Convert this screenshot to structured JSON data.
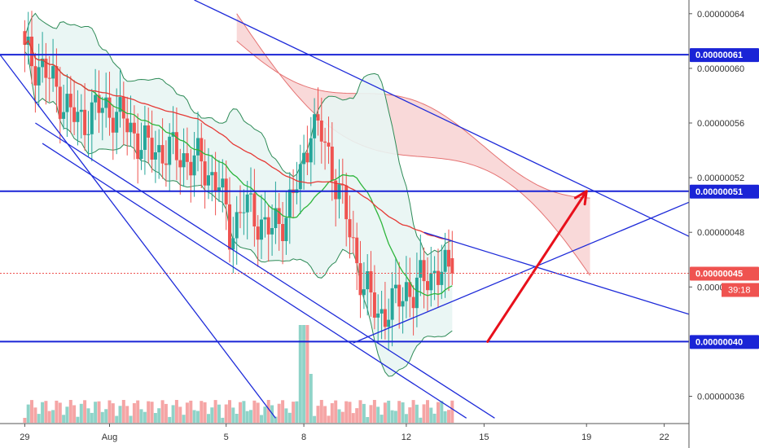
{
  "chart_data": {
    "type": "candlestick",
    "colors": {
      "up": "#26a69a",
      "down": "#ef5350",
      "up_volume": "#8fd3c8",
      "down_volume": "#f5a5a5",
      "fast_ma": "#2db53b",
      "slow_ma": "#e53935",
      "bollinger": "#2e8b57",
      "bollinger_fill": "#e8f5f3",
      "cloud_bear": "#f8d0d0",
      "cloud_bull": "#c8ebe0",
      "cloud_line": "#e57373",
      "trendline": "#1e2bd9",
      "level_line": "#1a24d6",
      "arrow": "#e8101b",
      "last_price_line": "#ef5350",
      "axis_border": "#555555",
      "level_tag": "#1a24d6",
      "price_tag": "#ef5350"
    },
    "x_ticks": [
      {
        "label": "29",
        "i": 0
      },
      {
        "label": "Aug",
        "i": 24
      },
      {
        "label": "5",
        "i": 57
      },
      {
        "label": "8",
        "i": 79
      },
      {
        "label": "12",
        "i": 108
      },
      {
        "label": "15",
        "i": 130
      },
      {
        "label": "19",
        "i": 159
      },
      {
        "label": "22",
        "i": 181
      }
    ],
    "y_ticks": [
      {
        "label": "0.00000064",
        "v": 6.4e-07
      },
      {
        "label": "0.00000060",
        "v": 6e-07
      },
      {
        "label": "0.00000056",
        "v": 5.6e-07
      },
      {
        "label": "0.00000052",
        "v": 5.2e-07
      },
      {
        "label": "0.00000048",
        "v": 4.8e-07
      },
      {
        "label": "0.00000044",
        "v": 4.4e-07
      },
      {
        "label": "0.00000036",
        "v": 3.6e-07
      }
    ],
    "ylim": [
      3.4e-07,
      6.5e-07
    ],
    "xlim": [
      -7,
      188
    ],
    "levels": [
      {
        "label": "0.00000061",
        "v": 6.1e-07
      },
      {
        "label": "0.00000051",
        "v": 5.1e-07
      },
      {
        "label": "0.00000040",
        "v": 4e-07
      }
    ],
    "last_price": {
      "label": "0.00000045",
      "v": 4.5e-07
    },
    "countdown": "39:18",
    "candles": [],
    "trendlines": [
      {
        "x1": -7,
        "y1": 6.1e-07,
        "x2": 71,
        "y2": 3.44e-07
      },
      {
        "x1": 3,
        "y1": 5.6e-07,
        "x2": 133,
        "y2": 3.44e-07
      },
      {
        "x1": 5,
        "y1": 5.45e-07,
        "x2": 125,
        "y2": 3.44e-07
      },
      {
        "x1": 48,
        "y1": 6.5e-07,
        "x2": 188,
        "y2": 4.77e-07
      },
      {
        "x1": 93,
        "y1": 3.99e-07,
        "x2": 188,
        "y2": 5.02e-07
      },
      {
        "x1": 113,
        "y1": 4.8e-07,
        "x2": 188,
        "y2": 4.2e-07
      }
    ],
    "arrow": {
      "x1": 131,
      "y1": 4e-07,
      "x2": 159,
      "y2": 5.1e-07
    }
  }
}
